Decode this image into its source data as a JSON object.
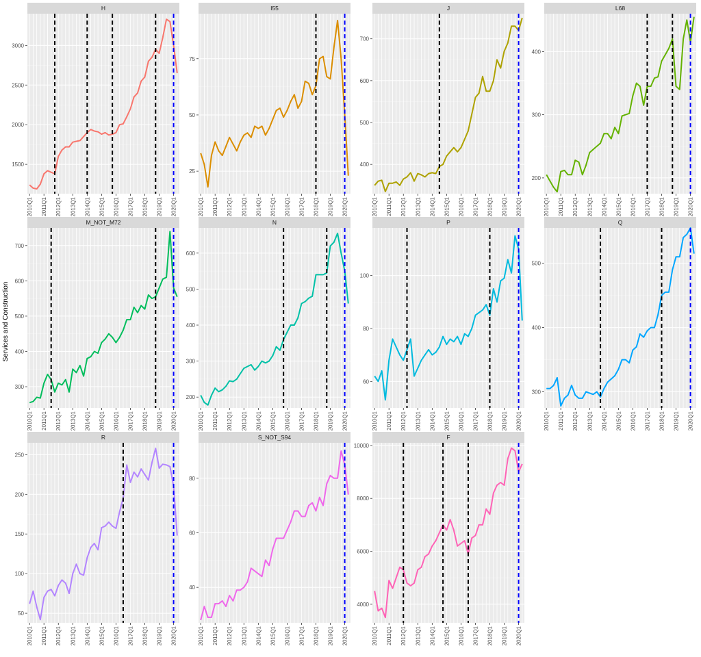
{
  "ylabel": "Services and Construction",
  "chart_data": [
    {
      "type": "line",
      "title": "H",
      "color": "#F8766D",
      "categories": [
        "2010Q1",
        null,
        null,
        null,
        "2011Q1",
        null,
        null,
        null,
        "2012Q1",
        null,
        null,
        null,
        "2013Q1",
        null,
        null,
        null,
        "2014Q1",
        null,
        null,
        null,
        "2015Q1",
        null,
        null,
        null,
        "2016Q1",
        null,
        null,
        null,
        "2017Q1",
        null,
        null,
        null,
        "2018Q1",
        null,
        null,
        null,
        "2019Q1",
        null,
        null,
        null,
        "2020Q1",
        null
      ],
      "values": [
        1240,
        1200,
        1190,
        1250,
        1380,
        1420,
        1400,
        1380,
        1600,
        1680,
        1720,
        1720,
        1780,
        1790,
        1800,
        1850,
        1900,
        1940,
        1920,
        1910,
        1880,
        1900,
        1870,
        1880,
        1900,
        2000,
        2010,
        2100,
        2200,
        2350,
        2400,
        2550,
        2600,
        2800,
        2850,
        2950,
        2900,
        3100,
        3330,
        3300,
        3000,
        2650
      ],
      "ylim": [
        1130,
        3400
      ],
      "yticks": [
        1500,
        2000,
        2500,
        3000
      ],
      "vlines": [
        {
          "x": 7,
          "color": "#000000"
        },
        {
          "x": 16,
          "color": "#000000"
        },
        {
          "x": 23,
          "color": "#000000"
        },
        {
          "x": 35,
          "color": "#000000"
        },
        {
          "x": 40,
          "color": "#0000FF"
        }
      ]
    },
    {
      "type": "line",
      "title": "I55",
      "color": "#DB8E00",
      "categories": [
        "2010Q1",
        null,
        null,
        null,
        "2011Q1",
        null,
        null,
        null,
        "2012Q1",
        null,
        null,
        null,
        "2013Q1",
        null,
        null,
        null,
        "2014Q1",
        null,
        null,
        null,
        "2015Q1",
        null,
        null,
        null,
        "2016Q1",
        null,
        null,
        null,
        "2017Q1",
        null,
        null,
        null,
        "2018Q1",
        null,
        null,
        null,
        "2019Q1",
        null,
        null,
        null,
        "2020Q1",
        null
      ],
      "values": [
        33,
        28,
        18,
        32,
        38,
        34,
        32,
        36,
        40,
        37,
        34,
        38,
        41,
        42,
        40,
        45,
        44,
        45,
        41,
        44,
        48,
        52,
        53,
        49,
        52,
        56,
        59,
        53,
        56,
        65,
        64,
        59,
        63,
        75,
        76,
        67,
        66,
        80,
        92,
        75,
        50,
        23
      ],
      "ylim": [
        15,
        95
      ],
      "yticks": [
        25,
        50,
        75
      ],
      "vlines": [
        {
          "x": 32,
          "color": "#000000"
        },
        {
          "x": 40,
          "color": "#0000FF"
        }
      ]
    },
    {
      "type": "line",
      "title": "J",
      "color": "#AEA200",
      "categories": [
        "2010Q1",
        null,
        null,
        null,
        "2011Q1",
        null,
        null,
        null,
        "2012Q1",
        null,
        null,
        null,
        "2013Q1",
        null,
        null,
        null,
        "2014Q1",
        null,
        null,
        null,
        "2015Q1",
        null,
        null,
        null,
        "2016Q1",
        null,
        null,
        null,
        "2017Q1",
        null,
        null,
        null,
        "2018Q1",
        null,
        null,
        null,
        "2019Q1",
        null,
        null,
        null,
        "2020Q1",
        null
      ],
      "values": [
        350,
        360,
        362,
        335,
        355,
        355,
        358,
        350,
        365,
        370,
        380,
        360,
        378,
        375,
        370,
        378,
        380,
        378,
        395,
        400,
        420,
        430,
        440,
        430,
        440,
        460,
        480,
        520,
        560,
        570,
        610,
        575,
        575,
        600,
        650,
        630,
        670,
        690,
        730,
        730,
        720,
        750
      ],
      "ylim": [
        330,
        760
      ],
      "yticks": [
        400,
        500,
        600,
        700
      ],
      "vlines": [
        {
          "x": 18,
          "color": "#000000"
        },
        {
          "x": 40,
          "color": "#0000FF"
        }
      ]
    },
    {
      "type": "line",
      "title": "L68",
      "color": "#64B200",
      "categories": [
        "2010Q1",
        null,
        null,
        null,
        "2011Q1",
        null,
        null,
        null,
        "2012Q1",
        null,
        null,
        null,
        "2013Q1",
        null,
        null,
        null,
        "2014Q1",
        null,
        null,
        null,
        "2015Q1",
        null,
        null,
        null,
        "2016Q1",
        null,
        null,
        null,
        "2017Q1",
        null,
        null,
        null,
        "2018Q1",
        null,
        null,
        null,
        "2019Q1",
        null,
        null,
        null,
        "2020Q1",
        null
      ],
      "values": [
        205,
        195,
        185,
        178,
        210,
        212,
        205,
        205,
        228,
        225,
        205,
        220,
        240,
        245,
        250,
        255,
        270,
        270,
        262,
        280,
        270,
        298,
        300,
        302,
        330,
        350,
        345,
        315,
        345,
        345,
        358,
        360,
        385,
        395,
        405,
        420,
        345,
        340,
        420,
        450,
        415,
        455
      ],
      "ylim": [
        175,
        460
      ],
      "yticks": [
        200,
        300,
        400
      ],
      "vlines": [
        {
          "x": 28,
          "color": "#000000"
        },
        {
          "x": 35,
          "color": "#000000"
        },
        {
          "x": 40,
          "color": "#0000FF"
        }
      ]
    },
    {
      "type": "line",
      "title": "M_NOT_M72",
      "color": "#00BD5C",
      "categories": [
        "2010Q1",
        null,
        null,
        null,
        "2011Q1",
        null,
        null,
        null,
        "2012Q1",
        null,
        null,
        null,
        "2013Q1",
        null,
        null,
        null,
        "2014Q1",
        null,
        null,
        null,
        "2015Q1",
        null,
        null,
        null,
        "2016Q1",
        null,
        null,
        null,
        "2017Q1",
        null,
        null,
        null,
        "2018Q1",
        null,
        null,
        null,
        "2019Q1",
        null,
        null,
        null,
        "2020Q1",
        null
      ],
      "values": [
        255,
        258,
        270,
        268,
        310,
        335,
        320,
        285,
        310,
        305,
        320,
        285,
        350,
        340,
        360,
        330,
        380,
        385,
        400,
        395,
        425,
        435,
        450,
        440,
        425,
        440,
        460,
        490,
        490,
        525,
        510,
        530,
        520,
        560,
        550,
        555,
        580,
        605,
        610,
        740,
        580,
        555
      ],
      "ylim": [
        240,
        750
      ],
      "yticks": [
        300,
        400,
        500,
        600,
        700
      ],
      "vlines": [
        {
          "x": 6,
          "color": "#000000"
        },
        {
          "x": 35,
          "color": "#000000"
        },
        {
          "x": 40,
          "color": "#0000FF"
        }
      ]
    },
    {
      "type": "line",
      "title": "N",
      "color": "#00C1A7",
      "categories": [
        "2010Q1",
        null,
        null,
        null,
        "2011Q1",
        null,
        null,
        null,
        "2012Q1",
        null,
        null,
        null,
        "2013Q1",
        null,
        null,
        null,
        "2014Q1",
        null,
        null,
        null,
        "2015Q1",
        null,
        null,
        null,
        "2016Q1",
        null,
        null,
        null,
        "2017Q1",
        null,
        null,
        null,
        "2018Q1",
        null,
        null,
        null,
        "2019Q1",
        null,
        null,
        null,
        "2020Q1",
        null
      ],
      "values": [
        205,
        185,
        178,
        205,
        225,
        215,
        220,
        230,
        245,
        243,
        250,
        265,
        280,
        285,
        290,
        275,
        285,
        300,
        295,
        300,
        315,
        340,
        330,
        360,
        380,
        400,
        400,
        420,
        460,
        465,
        475,
        480,
        540,
        540,
        540,
        545,
        620,
        630,
        655,
        600,
        550,
        460
      ],
      "ylim": [
        170,
        670
      ],
      "yticks": [
        200,
        300,
        400,
        500,
        600
      ],
      "vlines": [
        {
          "x": 23,
          "color": "#000000"
        },
        {
          "x": 35,
          "color": "#000000"
        },
        {
          "x": 40,
          "color": "#0000FF"
        }
      ]
    },
    {
      "type": "line",
      "title": "P",
      "color": "#00BADE",
      "categories": [
        "2010Q1",
        null,
        null,
        null,
        "2011Q1",
        null,
        null,
        null,
        "2012Q1",
        null,
        null,
        null,
        "2013Q1",
        null,
        null,
        null,
        "2014Q1",
        null,
        null,
        null,
        "2015Q1",
        null,
        null,
        null,
        "2016Q1",
        null,
        null,
        null,
        "2017Q1",
        null,
        null,
        null,
        "2018Q1",
        null,
        null,
        null,
        "2019Q1",
        null,
        null,
        null,
        "2020Q1",
        null
      ],
      "values": [
        62,
        60,
        64,
        53,
        68,
        76,
        73,
        70,
        68,
        72,
        76,
        62,
        65,
        68,
        70,
        72,
        70,
        71,
        73,
        77,
        74,
        76,
        75,
        77,
        74,
        78,
        77,
        80,
        85,
        86,
        87,
        89,
        85,
        95,
        90,
        98,
        99,
        106,
        101,
        115,
        110,
        83
      ],
      "ylim": [
        50,
        118
      ],
      "yticks": [
        60,
        80,
        100
      ],
      "vlines": [
        {
          "x": 9,
          "color": "#000000"
        },
        {
          "x": 32,
          "color": "#000000"
        },
        {
          "x": 40,
          "color": "#0000FF"
        }
      ]
    },
    {
      "type": "line",
      "title": "Q",
      "color": "#00A6FF",
      "categories": [
        "2010Q1",
        null,
        null,
        null,
        "2011Q1",
        null,
        null,
        null,
        "2012Q1",
        null,
        null,
        null,
        "2013Q1",
        null,
        null,
        null,
        "2014Q1",
        null,
        null,
        null,
        "2015Q1",
        null,
        null,
        null,
        "2016Q1",
        null,
        null,
        null,
        "2017Q1",
        null,
        null,
        null,
        "2018Q1",
        null,
        null,
        null,
        "2019Q1",
        null,
        null,
        null,
        "2020Q1",
        null
      ],
      "values": [
        305,
        305,
        310,
        322,
        278,
        290,
        295,
        310,
        295,
        290,
        290,
        300,
        298,
        296,
        300,
        292,
        305,
        315,
        320,
        325,
        335,
        350,
        350,
        345,
        365,
        370,
        390,
        385,
        395,
        400,
        400,
        420,
        450,
        455,
        455,
        490,
        510,
        510,
        540,
        545,
        555,
        515
      ],
      "ylim": [
        275,
        555
      ],
      "yticks": [
        300,
        400,
        500
      ],
      "vlines": [
        {
          "x": 15,
          "color": "#000000"
        },
        {
          "x": 32,
          "color": "#000000"
        },
        {
          "x": 40,
          "color": "#0000FF"
        }
      ]
    },
    {
      "type": "line",
      "title": "R",
      "color": "#B385FF",
      "categories": [
        "2010Q1",
        null,
        null,
        null,
        "2011Q1",
        null,
        null,
        null,
        "2012Q1",
        null,
        null,
        null,
        "2013Q1",
        null,
        null,
        null,
        "2014Q1",
        null,
        null,
        null,
        "2015Q1",
        null,
        null,
        null,
        "2016Q1",
        null,
        null,
        null,
        "2017Q1",
        null,
        null,
        null,
        "2018Q1",
        null,
        null,
        null,
        "2019Q1",
        null,
        null,
        null,
        "2020Q1",
        null
      ],
      "values": [
        62,
        78,
        58,
        42,
        70,
        78,
        80,
        72,
        85,
        92,
        88,
        75,
        100,
        112,
        100,
        98,
        120,
        133,
        138,
        130,
        158,
        160,
        165,
        160,
        157,
        178,
        195,
        237,
        215,
        228,
        222,
        232,
        225,
        218,
        240,
        258,
        233,
        238,
        237,
        235,
        210,
        148
      ],
      "ylim": [
        38,
        265
      ],
      "yticks": [
        50,
        100,
        150,
        200,
        250
      ],
      "vlines": [
        {
          "x": 26,
          "color": "#000000"
        },
        {
          "x": 40,
          "color": "#0000FF"
        }
      ]
    },
    {
      "type": "line",
      "title": "S_NOT_S94",
      "color": "#EF67EB",
      "categories": [
        "2010Q1",
        null,
        null,
        null,
        "2011Q1",
        null,
        null,
        null,
        "2012Q1",
        null,
        null,
        null,
        "2013Q1",
        null,
        null,
        null,
        "2014Q1",
        null,
        null,
        null,
        "2015Q1",
        null,
        null,
        null,
        "2016Q1",
        null,
        null,
        null,
        "2017Q1",
        null,
        null,
        null,
        "2018Q1",
        null,
        null,
        null,
        "2019Q1",
        null,
        null,
        null,
        "2020Q1",
        null
      ],
      "values": [
        28,
        33,
        29,
        29,
        34,
        34,
        35,
        33,
        37,
        35,
        39,
        39,
        40,
        42,
        47,
        46,
        45,
        44,
        50,
        48,
        54,
        58,
        58,
        58,
        61,
        64,
        68,
        68,
        66,
        66,
        70,
        71,
        68,
        73,
        70,
        78,
        81,
        80,
        80,
        90,
        85,
        74
      ],
      "ylim": [
        27,
        93
      ],
      "yticks": [
        40,
        60,
        80
      ],
      "vlines": [
        {
          "x": 40,
          "color": "#0000FF"
        }
      ]
    },
    {
      "type": "line",
      "title": "F",
      "color": "#FF63B6",
      "categories": [
        "2010Q1",
        null,
        null,
        null,
        "2011Q1",
        null,
        null,
        null,
        "2012Q1",
        null,
        null,
        null,
        "2013Q1",
        null,
        null,
        null,
        "2014Q1",
        null,
        null,
        null,
        "2015Q1",
        null,
        null,
        null,
        "2016Q1",
        null,
        null,
        null,
        "2017Q1",
        null,
        null,
        null,
        "2018Q1",
        null,
        null,
        null,
        "2019Q1",
        null,
        null,
        null,
        "2020Q1",
        null
      ],
      "values": [
        4500,
        3750,
        3850,
        3500,
        4900,
        4600,
        5000,
        5400,
        5300,
        4800,
        4700,
        4800,
        5300,
        5400,
        5800,
        5900,
        6200,
        6400,
        6700,
        7000,
        6800,
        7200,
        6800,
        6200,
        6300,
        6400,
        5900,
        6500,
        6600,
        7000,
        7000,
        7600,
        7400,
        8200,
        8500,
        8600,
        8500,
        9500,
        9900,
        9800,
        9000,
        9300
      ],
      "ylim": [
        3300,
        10100
      ],
      "yticks": [
        4000,
        6000,
        8000,
        10000
      ],
      "vlines": [
        {
          "x": 8,
          "color": "#000000"
        },
        {
          "x": 19,
          "color": "#000000"
        },
        {
          "x": 26,
          "color": "#000000"
        },
        {
          "x": 40,
          "color": "#0000FF"
        }
      ]
    }
  ]
}
